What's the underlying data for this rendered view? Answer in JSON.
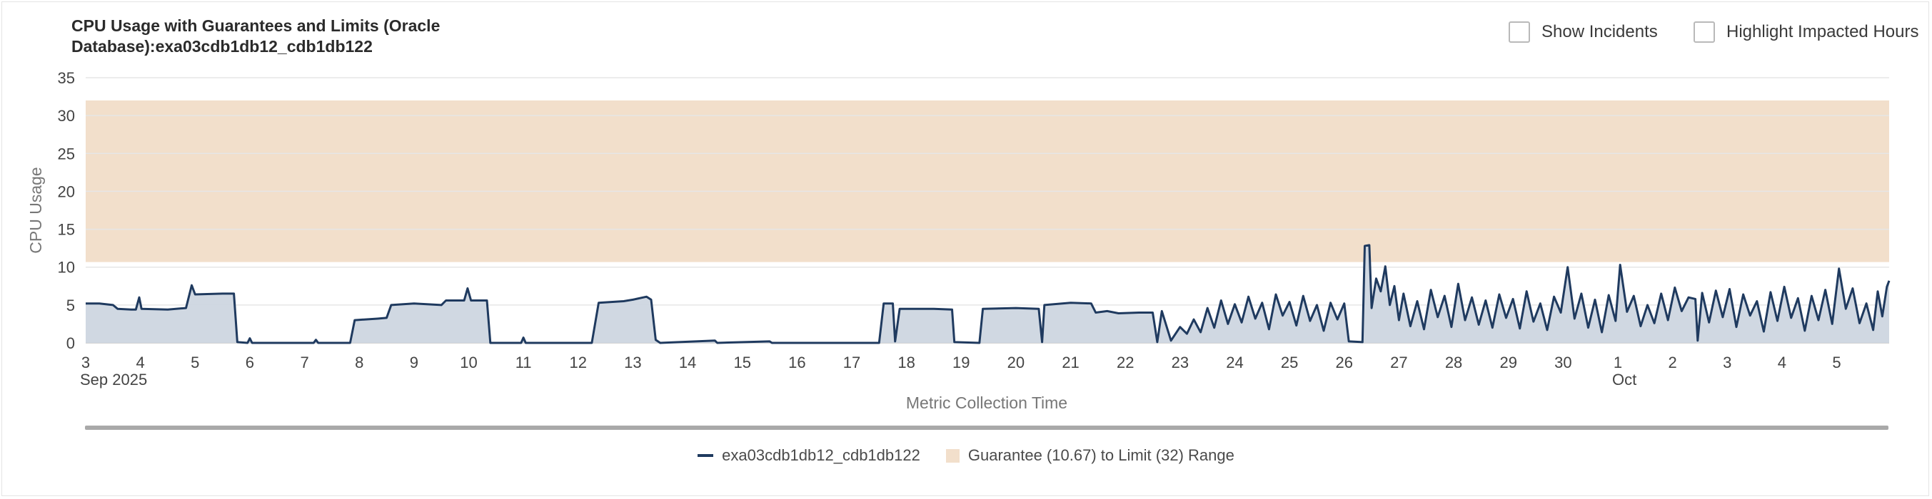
{
  "header": {
    "title_line1": "CPU Usage with Guarantees and Limits (Oracle",
    "title_line2": "Database):exa03cdb1db12_cdb1db122"
  },
  "controls": {
    "show_incidents": {
      "label": "Show Incidents",
      "checked": false
    },
    "highlight_hours": {
      "label": "Highlight Impacted Hours",
      "checked": false
    }
  },
  "legend": {
    "series_label": "exa03cdb1db12_cdb1db122",
    "band_label": "Guarantee (10.67) to Limit (32) Range"
  },
  "colors": {
    "line": "#1f3a5f",
    "area_fill": "#cdd6e0",
    "band": "#f2dfcb",
    "grid": "#e6e6e6",
    "axis_text": "#444444"
  },
  "chart_data": {
    "type": "area",
    "title": "CPU Usage with Guarantees and Limits (Oracle Database):exa03cdb1db12_cdb1db122",
    "xlabel": "Metric Collection Time",
    "ylabel": "CPU Usage",
    "ylim": [
      0,
      35
    ],
    "xlim": [
      "2025-09-03",
      "2025-10-05T23:00"
    ],
    "yticks": [
      0,
      5,
      10,
      15,
      20,
      25,
      30,
      35
    ],
    "xticks": [
      {
        "date": "2025-09-03",
        "label": "3",
        "sublabel": "Sep 2025"
      },
      {
        "date": "2025-09-04",
        "label": "4"
      },
      {
        "date": "2025-09-05",
        "label": "5"
      },
      {
        "date": "2025-09-06",
        "label": "6"
      },
      {
        "date": "2025-09-07",
        "label": "7"
      },
      {
        "date": "2025-09-08",
        "label": "8"
      },
      {
        "date": "2025-09-09",
        "label": "9"
      },
      {
        "date": "2025-09-10",
        "label": "10"
      },
      {
        "date": "2025-09-11",
        "label": "11"
      },
      {
        "date": "2025-09-12",
        "label": "12"
      },
      {
        "date": "2025-09-13",
        "label": "13"
      },
      {
        "date": "2025-09-14",
        "label": "14"
      },
      {
        "date": "2025-09-15",
        "label": "15"
      },
      {
        "date": "2025-09-16",
        "label": "16"
      },
      {
        "date": "2025-09-17",
        "label": "17"
      },
      {
        "date": "2025-09-18",
        "label": "18"
      },
      {
        "date": "2025-09-19",
        "label": "19"
      },
      {
        "date": "2025-09-20",
        "label": "20"
      },
      {
        "date": "2025-09-21",
        "label": "21"
      },
      {
        "date": "2025-09-22",
        "label": "22"
      },
      {
        "date": "2025-09-23",
        "label": "23"
      },
      {
        "date": "2025-09-24",
        "label": "24"
      },
      {
        "date": "2025-09-25",
        "label": "25"
      },
      {
        "date": "2025-09-26",
        "label": "26"
      },
      {
        "date": "2025-09-27",
        "label": "27"
      },
      {
        "date": "2025-09-28",
        "label": "28"
      },
      {
        "date": "2025-09-29",
        "label": "29"
      },
      {
        "date": "2025-09-30",
        "label": "30"
      },
      {
        "date": "2025-10-01",
        "label": "1",
        "sublabel": "Oct"
      },
      {
        "date": "2025-10-02",
        "label": "2"
      },
      {
        "date": "2025-10-03",
        "label": "3"
      },
      {
        "date": "2025-10-04",
        "label": "4"
      },
      {
        "date": "2025-10-05",
        "label": "5"
      }
    ],
    "band": {
      "name": "Guarantee (10.67) to Limit (32) Range",
      "from": 10.67,
      "to": 32
    },
    "grid": true,
    "legend_position": "bottom-center",
    "series": [
      {
        "name": "exa03cdb1db12_cdb1db122",
        "points": [
          [
            "2025-09-03T00:00",
            5.2
          ],
          [
            "2025-09-03T06:00",
            5.2
          ],
          [
            "2025-09-03T12:00",
            5.0
          ],
          [
            "2025-09-03T14:00",
            4.5
          ],
          [
            "2025-09-03T20:00",
            4.4
          ],
          [
            "2025-09-03T22:00",
            4.4
          ],
          [
            "2025-09-03T23:30",
            6.0
          ],
          [
            "2025-09-04T00:30",
            4.5
          ],
          [
            "2025-09-04T12:00",
            4.4
          ],
          [
            "2025-09-04T20:00",
            4.6
          ],
          [
            "2025-09-04T22:30",
            7.6
          ],
          [
            "2025-09-05T00:00",
            6.4
          ],
          [
            "2025-09-05T12:00",
            6.5
          ],
          [
            "2025-09-05T17:00",
            6.5
          ],
          [
            "2025-09-05T18:30",
            0.1
          ],
          [
            "2025-09-05T23:00",
            0.0
          ],
          [
            "2025-09-06T00:00",
            0.6
          ],
          [
            "2025-09-06T01:00",
            0.0
          ],
          [
            "2025-09-07T04:00",
            0.0
          ],
          [
            "2025-09-07T05:00",
            0.4
          ],
          [
            "2025-09-07T06:00",
            0.0
          ],
          [
            "2025-09-07T20:00",
            0.0
          ],
          [
            "2025-09-07T22:00",
            3.0
          ],
          [
            "2025-09-08T08:00",
            3.2
          ],
          [
            "2025-09-08T12:00",
            3.3
          ],
          [
            "2025-09-08T14:00",
            5.0
          ],
          [
            "2025-09-09T00:00",
            5.2
          ],
          [
            "2025-09-09T12:00",
            5.0
          ],
          [
            "2025-09-09T14:00",
            5.6
          ],
          [
            "2025-09-09T22:00",
            5.6
          ],
          [
            "2025-09-09T23:30",
            7.2
          ],
          [
            "2025-09-10T01:00",
            5.6
          ],
          [
            "2025-09-10T08:00",
            5.6
          ],
          [
            "2025-09-10T09:30",
            0.0
          ],
          [
            "2025-09-10T23:00",
            0.0
          ],
          [
            "2025-09-11T00:00",
            0.7
          ],
          [
            "2025-09-11T01:00",
            0.0
          ],
          [
            "2025-09-12T06:00",
            0.0
          ],
          [
            "2025-09-12T09:00",
            5.3
          ],
          [
            "2025-09-12T20:00",
            5.5
          ],
          [
            "2025-09-13T00:00",
            5.7
          ],
          [
            "2025-09-13T06:00",
            6.1
          ],
          [
            "2025-09-13T08:00",
            5.7
          ],
          [
            "2025-09-13T10:00",
            0.4
          ],
          [
            "2025-09-13T12:00",
            0.0
          ],
          [
            "2025-09-14T12:00",
            0.3
          ],
          [
            "2025-09-14T13:00",
            0.0
          ],
          [
            "2025-09-15T12:00",
            0.2
          ],
          [
            "2025-09-15T13:00",
            0.0
          ],
          [
            "2025-09-17T12:00",
            0.0
          ],
          [
            "2025-09-17T14:00",
            5.2
          ],
          [
            "2025-09-17T18:00",
            5.2
          ],
          [
            "2025-09-17T19:00",
            0.2
          ],
          [
            "2025-09-17T21:00",
            4.5
          ],
          [
            "2025-09-18T12:00",
            4.5
          ],
          [
            "2025-09-18T20:00",
            4.4
          ],
          [
            "2025-09-18T21:00",
            0.1
          ],
          [
            "2025-09-19T08:00",
            0.0
          ],
          [
            "2025-09-19T09:30",
            4.5
          ],
          [
            "2025-09-20T00:00",
            4.6
          ],
          [
            "2025-09-20T10:00",
            4.5
          ],
          [
            "2025-09-20T11:30",
            0.1
          ],
          [
            "2025-09-20T12:30",
            5.0
          ],
          [
            "2025-09-21T00:00",
            5.3
          ],
          [
            "2025-09-21T09:00",
            5.2
          ],
          [
            "2025-09-21T11:00",
            4.0
          ],
          [
            "2025-09-21T16:00",
            4.2
          ],
          [
            "2025-09-21T21:00",
            3.9
          ],
          [
            "2025-09-22T06:00",
            4.0
          ],
          [
            "2025-09-22T12:00",
            4.0
          ],
          [
            "2025-09-22T14:00",
            0.1
          ],
          [
            "2025-09-22T16:00",
            4.2
          ],
          [
            "2025-09-22T20:00",
            0.3
          ],
          [
            "2025-09-23T00:00",
            2.1
          ],
          [
            "2025-09-23T03:00",
            1.2
          ],
          [
            "2025-09-23T06:00",
            3.1
          ],
          [
            "2025-09-23T09:00",
            1.4
          ],
          [
            "2025-09-23T12:00",
            4.6
          ],
          [
            "2025-09-23T15:00",
            2.0
          ],
          [
            "2025-09-23T18:00",
            5.6
          ],
          [
            "2025-09-23T21:00",
            2.5
          ],
          [
            "2025-09-24T00:00",
            5.1
          ],
          [
            "2025-09-24T03:00",
            2.7
          ],
          [
            "2025-09-24T06:00",
            6.1
          ],
          [
            "2025-09-24T09:00",
            3.2
          ],
          [
            "2025-09-24T12:00",
            5.3
          ],
          [
            "2025-09-24T15:00",
            1.8
          ],
          [
            "2025-09-24T18:00",
            6.4
          ],
          [
            "2025-09-24T21:00",
            3.6
          ],
          [
            "2025-09-25T00:00",
            5.4
          ],
          [
            "2025-09-25T03:00",
            2.3
          ],
          [
            "2025-09-25T06:00",
            6.2
          ],
          [
            "2025-09-25T09:00",
            2.9
          ],
          [
            "2025-09-25T12:00",
            5.0
          ],
          [
            "2025-09-25T15:00",
            1.6
          ],
          [
            "2025-09-25T18:00",
            5.3
          ],
          [
            "2025-09-25T21:00",
            3.1
          ],
          [
            "2025-09-26T00:00",
            5.2
          ],
          [
            "2025-09-26T02:00",
            0.2
          ],
          [
            "2025-09-26T08:00",
            0.1
          ],
          [
            "2025-09-26T09:00",
            12.8
          ],
          [
            "2025-09-26T11:00",
            12.9
          ],
          [
            "2025-09-26T12:00",
            4.6
          ],
          [
            "2025-09-26T14:00",
            8.5
          ],
          [
            "2025-09-26T16:00",
            6.8
          ],
          [
            "2025-09-26T18:00",
            10.1
          ],
          [
            "2025-09-26T20:00",
            5.0
          ],
          [
            "2025-09-26T22:00",
            7.5
          ],
          [
            "2025-09-27T00:00",
            3.0
          ],
          [
            "2025-09-27T02:00",
            6.5
          ],
          [
            "2025-09-27T05:00",
            2.2
          ],
          [
            "2025-09-27T08:00",
            5.5
          ],
          [
            "2025-09-27T11:00",
            1.8
          ],
          [
            "2025-09-27T14:00",
            7.0
          ],
          [
            "2025-09-27T17:00",
            3.4
          ],
          [
            "2025-09-27T20:00",
            6.2
          ],
          [
            "2025-09-27T23:00",
            2.1
          ],
          [
            "2025-09-28T02:00",
            7.8
          ],
          [
            "2025-09-28T05:00",
            3.0
          ],
          [
            "2025-09-28T08:00",
            6.0
          ],
          [
            "2025-09-28T11:00",
            2.4
          ],
          [
            "2025-09-28T14:00",
            5.6
          ],
          [
            "2025-09-28T17:00",
            2.0
          ],
          [
            "2025-09-28T20:00",
            6.4
          ],
          [
            "2025-09-28T23:00",
            3.3
          ],
          [
            "2025-09-29T02:00",
            5.8
          ],
          [
            "2025-09-29T05:00",
            1.9
          ],
          [
            "2025-09-29T08:00",
            6.8
          ],
          [
            "2025-09-29T11:00",
            2.8
          ],
          [
            "2025-09-29T14:00",
            5.2
          ],
          [
            "2025-09-29T17:00",
            1.7
          ],
          [
            "2025-09-29T20:00",
            6.1
          ],
          [
            "2025-09-29T23:00",
            4.0
          ],
          [
            "2025-09-30T02:00",
            10.0
          ],
          [
            "2025-09-30T05:00",
            3.2
          ],
          [
            "2025-09-30T08:00",
            6.5
          ],
          [
            "2025-09-30T11:00",
            2.0
          ],
          [
            "2025-09-30T14:00",
            5.7
          ],
          [
            "2025-09-30T17:00",
            1.4
          ],
          [
            "2025-09-30T20:00",
            6.3
          ],
          [
            "2025-09-30T23:00",
            2.9
          ],
          [
            "2025-10-01T01:00",
            10.3
          ],
          [
            "2025-10-01T04:00",
            4.1
          ],
          [
            "2025-10-01T07:00",
            6.2
          ],
          [
            "2025-10-01T10:00",
            2.2
          ],
          [
            "2025-10-01T13:00",
            5.0
          ],
          [
            "2025-10-01T16:00",
            2.6
          ],
          [
            "2025-10-01T19:00",
            6.5
          ],
          [
            "2025-10-01T22:00",
            3.0
          ],
          [
            "2025-10-02T01:00",
            7.3
          ],
          [
            "2025-10-02T04:00",
            4.2
          ],
          [
            "2025-10-02T07:00",
            6.0
          ],
          [
            "2025-10-02T10:00",
            5.8
          ],
          [
            "2025-10-02T11:00",
            0.3
          ],
          [
            "2025-10-02T13:00",
            6.6
          ],
          [
            "2025-10-02T16:00",
            2.7
          ],
          [
            "2025-10-02T19:00",
            6.9
          ],
          [
            "2025-10-02T22:00",
            3.4
          ],
          [
            "2025-10-03T01:00",
            7.1
          ],
          [
            "2025-10-03T04:00",
            2.1
          ],
          [
            "2025-10-03T07:00",
            6.4
          ],
          [
            "2025-10-03T10:00",
            3.6
          ],
          [
            "2025-10-03T13:00",
            5.5
          ],
          [
            "2025-10-03T16:00",
            1.5
          ],
          [
            "2025-10-03T19:00",
            6.7
          ],
          [
            "2025-10-03T22:00",
            2.9
          ],
          [
            "2025-10-04T01:00",
            7.4
          ],
          [
            "2025-10-04T04:00",
            3.3
          ],
          [
            "2025-10-04T07:00",
            5.9
          ],
          [
            "2025-10-04T10:00",
            1.6
          ],
          [
            "2025-10-04T13:00",
            6.2
          ],
          [
            "2025-10-04T16:00",
            3.0
          ],
          [
            "2025-10-04T19:00",
            7.0
          ],
          [
            "2025-10-04T22:00",
            2.5
          ],
          [
            "2025-10-05T01:00",
            9.8
          ],
          [
            "2025-10-05T04:00",
            4.5
          ],
          [
            "2025-10-05T07:00",
            7.2
          ],
          [
            "2025-10-05T10:00",
            2.6
          ],
          [
            "2025-10-05T13:00",
            5.2
          ],
          [
            "2025-10-05T16:00",
            1.7
          ],
          [
            "2025-10-05T18:00",
            6.8
          ],
          [
            "2025-10-05T20:00",
            3.5
          ],
          [
            "2025-10-05T22:00",
            7.4
          ],
          [
            "2025-10-05T23:00",
            8.2
          ]
        ]
      }
    ]
  }
}
